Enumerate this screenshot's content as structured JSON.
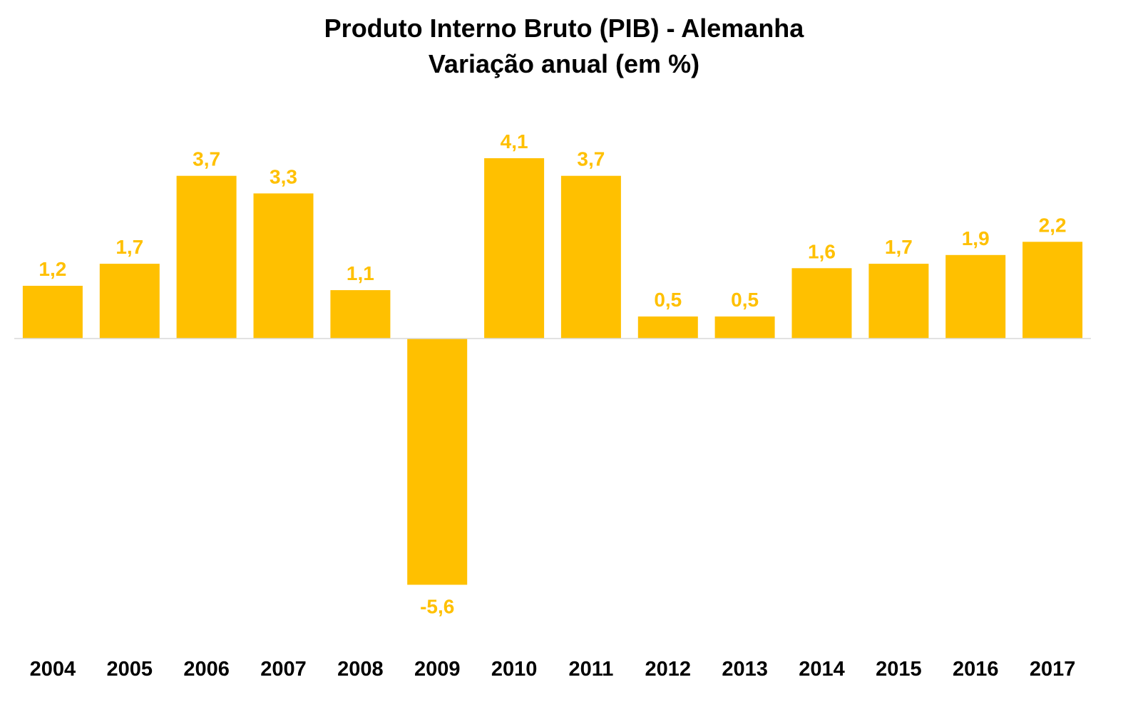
{
  "chart_data": {
    "type": "bar",
    "title": "Produto Interno Bruto (PIB) - Alemanha",
    "subtitle": "Variação anual (em %)",
    "categories": [
      "2004",
      "2005",
      "2006",
      "2007",
      "2008",
      "2009",
      "2010",
      "2011",
      "2012",
      "2013",
      "2014",
      "2015",
      "2016",
      "2017"
    ],
    "values": [
      1.2,
      1.7,
      3.7,
      3.3,
      1.1,
      -5.6,
      4.1,
      3.7,
      0.5,
      0.5,
      1.6,
      1.7,
      1.9,
      2.2
    ],
    "data_labels": [
      "1,2",
      "1,7",
      "3,7",
      "3,3",
      "1,1",
      "-5,6",
      "4,1",
      "3,7",
      "0,5",
      "0,5",
      "1,6",
      "1,7",
      "1,9",
      "2,2"
    ],
    "xlabel": "",
    "ylabel": "",
    "grid": false,
    "legend": "none",
    "bar_color": "#FFC000",
    "label_color": "#FFC000",
    "axis_color": "#D9D9D9"
  }
}
